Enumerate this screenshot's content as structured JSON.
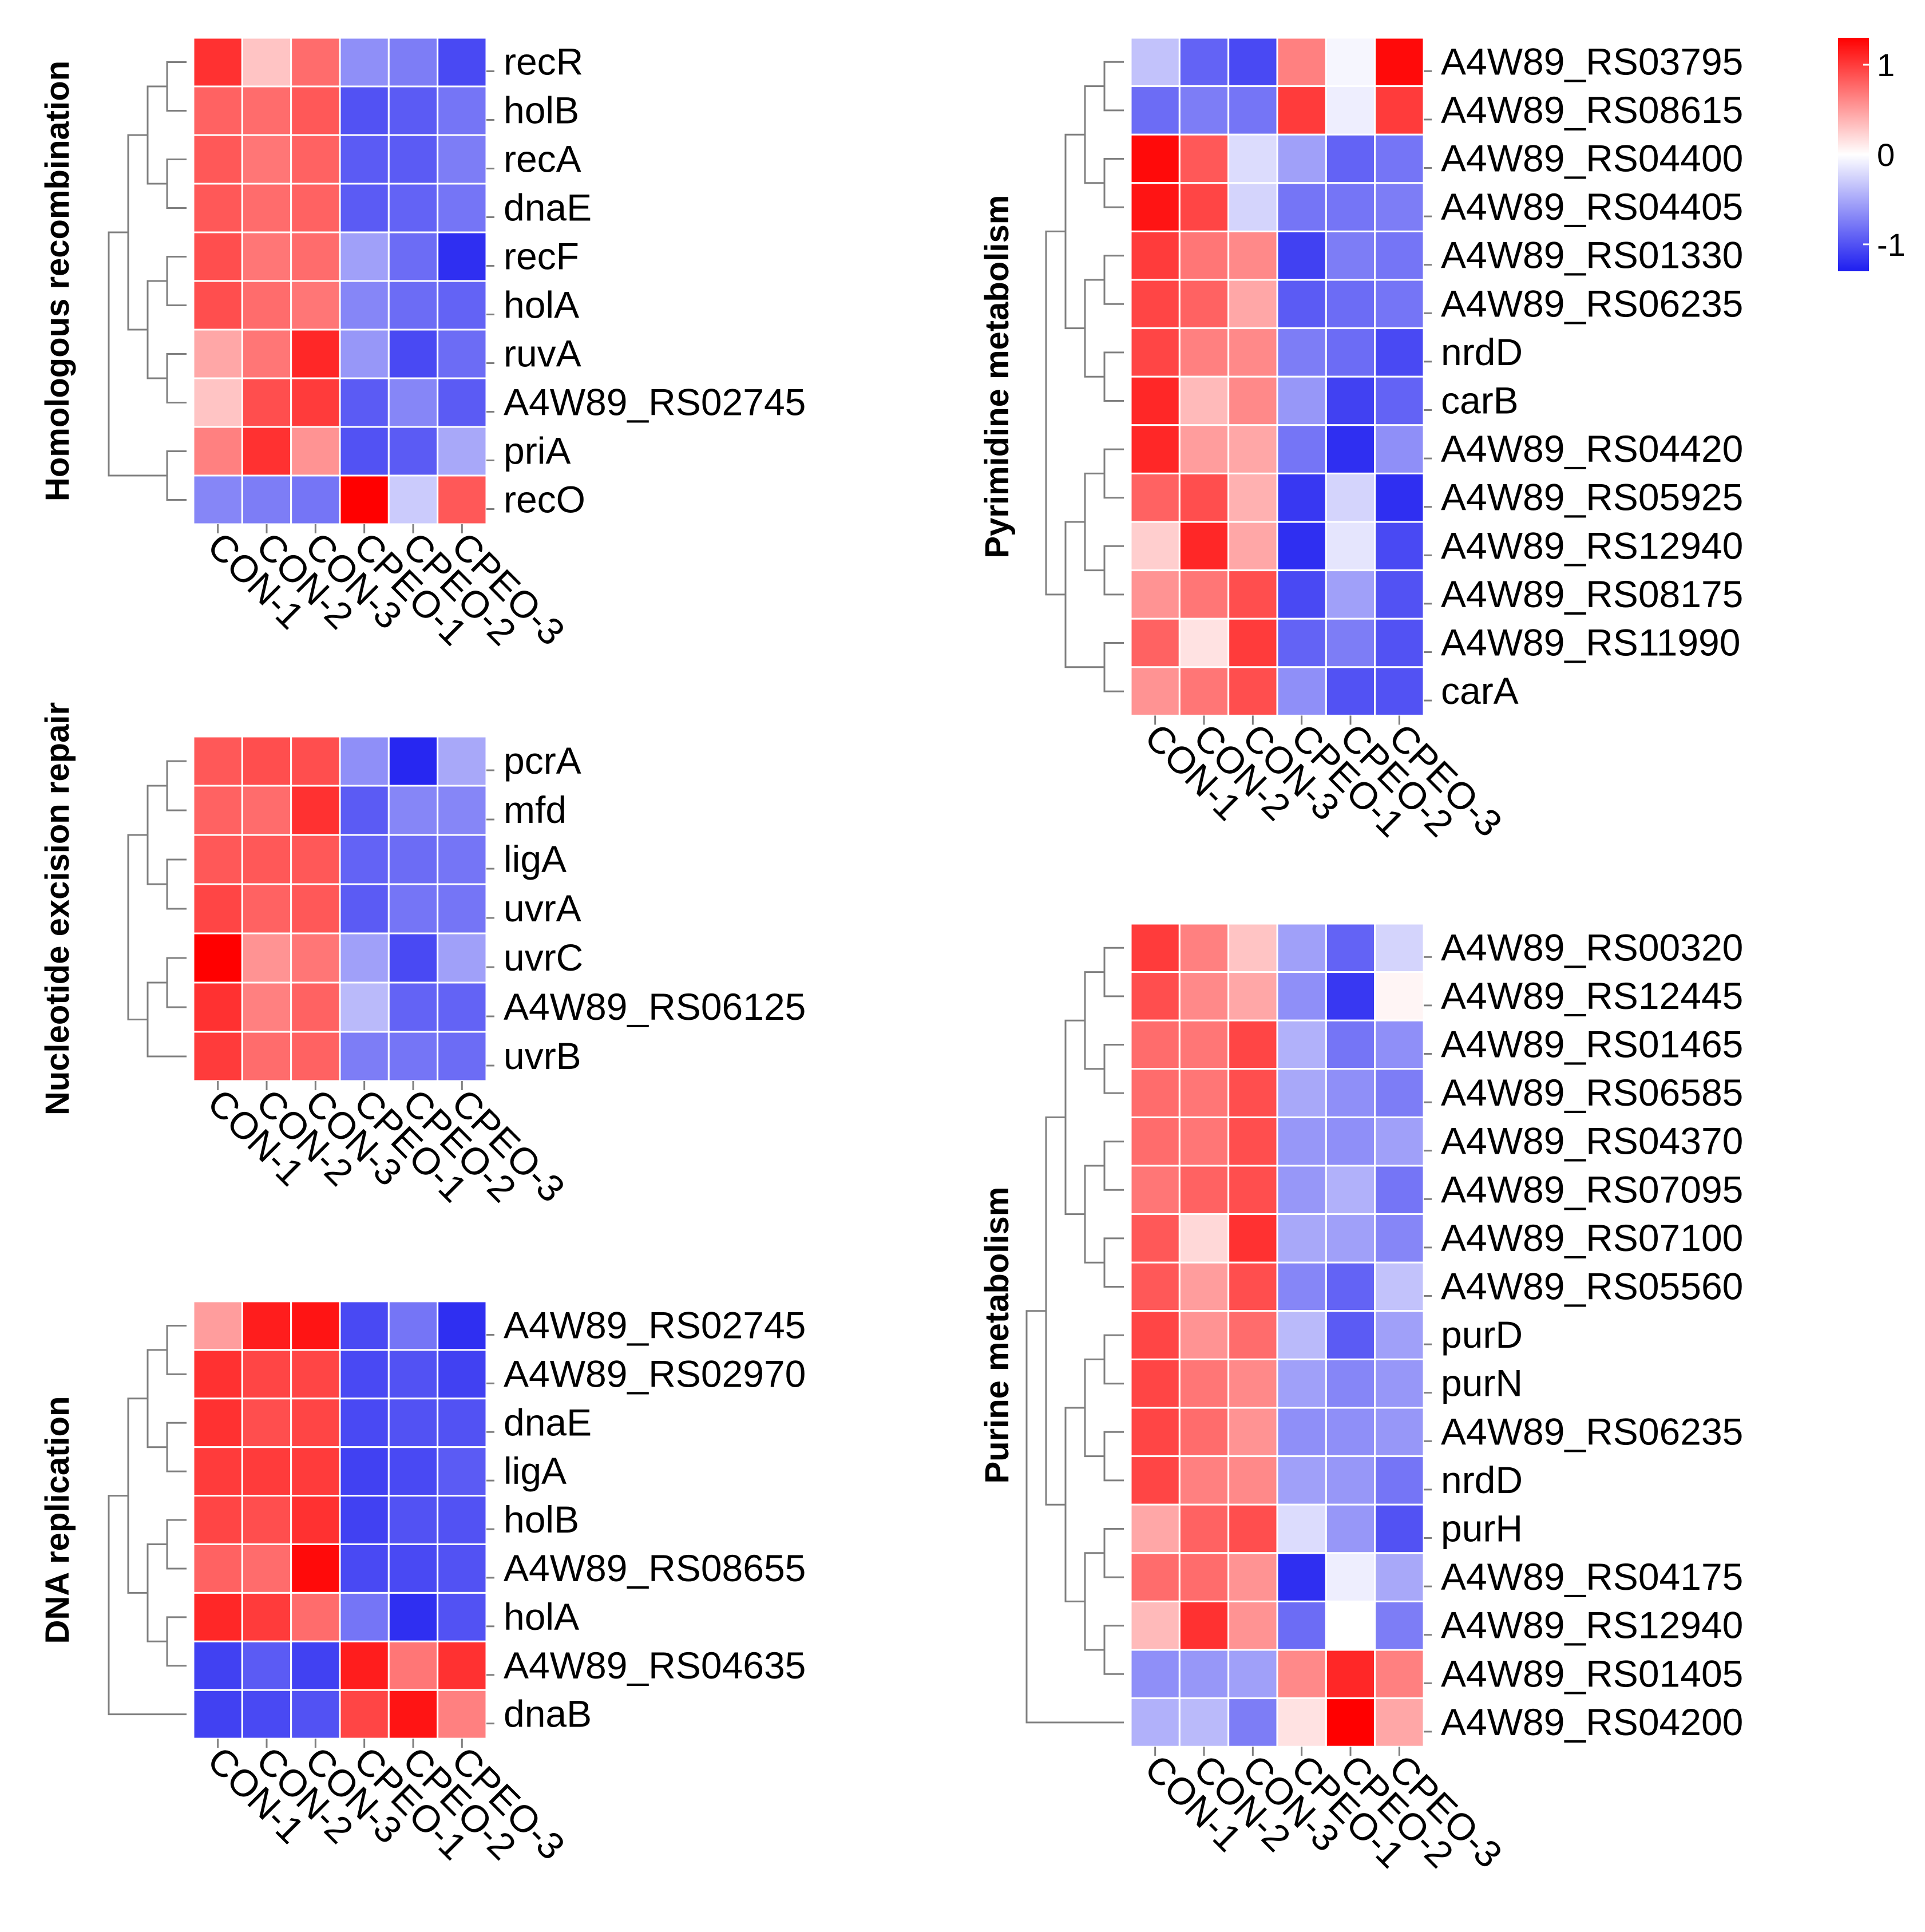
{
  "legend": {
    "ticks": [
      1,
      0,
      -1
    ],
    "tick_labels": [
      "1",
      "0",
      "-1"
    ],
    "range": [
      -1.3,
      1.3
    ],
    "colors": {
      "low": "#1e1ef0",
      "mid": "#ffffff",
      "high": "#ff0000"
    }
  },
  "chart_data": [
    {
      "id": "homologous",
      "type": "heatmap",
      "title": "Homologous recombination",
      "columns": [
        "CON-1",
        "CON-2",
        "CON-3",
        "CPEO-1",
        "CPEO-2",
        "CPEO-3"
      ],
      "rows": [
        "recR",
        "holB",
        "recA",
        "dnaE",
        "recF",
        "holA",
        "ruvA",
        "A4W89_RS02745",
        "priA",
        "recO"
      ],
      "values": [
        [
          1.05,
          0.3,
          0.75,
          -0.65,
          -0.75,
          -1.05
        ],
        [
          0.8,
          0.75,
          0.85,
          -1.0,
          -0.95,
          -0.8
        ],
        [
          0.85,
          0.7,
          0.8,
          -0.95,
          -0.95,
          -0.75
        ],
        [
          0.85,
          0.75,
          0.8,
          -0.95,
          -0.9,
          -0.8
        ],
        [
          0.9,
          0.7,
          0.75,
          -0.55,
          -0.85,
          -1.2
        ],
        [
          0.9,
          0.75,
          0.7,
          -0.7,
          -0.85,
          -0.9
        ],
        [
          0.45,
          0.7,
          1.1,
          -0.6,
          -1.05,
          -0.85
        ],
        [
          0.3,
          0.9,
          1.0,
          -0.95,
          -0.7,
          -0.95
        ],
        [
          0.65,
          1.05,
          0.55,
          -1.0,
          -0.95,
          -0.5
        ],
        [
          -0.7,
          -0.75,
          -0.8,
          1.3,
          -0.3,
          0.85
        ]
      ]
    },
    {
      "id": "ner",
      "type": "heatmap",
      "title": "Nucleotide excision repair",
      "columns": [
        "CON-1",
        "CON-2",
        "CON-3",
        "CPEO-1",
        "CPEO-2",
        "CPEO-3"
      ],
      "rows": [
        "pcrA",
        "mfd",
        "ligA",
        "uvrA",
        "uvrC",
        "A4W89_RS06125",
        "uvrB"
      ],
      "values": [
        [
          0.85,
          0.9,
          0.9,
          -0.65,
          -1.25,
          -0.5
        ],
        [
          0.8,
          0.75,
          1.05,
          -0.95,
          -0.7,
          -0.7
        ],
        [
          0.85,
          0.85,
          0.85,
          -0.9,
          -0.85,
          -0.8
        ],
        [
          0.95,
          0.8,
          0.85,
          -0.95,
          -0.8,
          -0.8
        ],
        [
          1.3,
          0.55,
          0.7,
          -0.55,
          -1.05,
          -0.55
        ],
        [
          1.05,
          0.65,
          0.8,
          -0.4,
          -0.9,
          -0.9
        ],
        [
          1.0,
          0.75,
          0.8,
          -0.75,
          -0.8,
          -0.85
        ]
      ]
    },
    {
      "id": "replication",
      "type": "heatmap",
      "title": "DNA replication",
      "columns": [
        "CON-1",
        "CON-2",
        "CON-3",
        "CPEO-1",
        "CPEO-2",
        "CPEO-3"
      ],
      "rows": [
        "A4W89_RS02745",
        "A4W89_RS02970",
        "dnaE",
        "ligA",
        "holB",
        "A4W89_RS08655",
        "holA",
        "A4W89_RS04635",
        "dnaB"
      ],
      "values": [
        [
          0.5,
          1.15,
          1.2,
          -1.05,
          -0.8,
          -1.2
        ],
        [
          1.05,
          0.95,
          0.95,
          -1.05,
          -1.0,
          -1.1
        ],
        [
          1.05,
          0.9,
          0.95,
          -1.05,
          -1.0,
          -1.0
        ],
        [
          1.0,
          1.0,
          1.0,
          -1.1,
          -1.05,
          -0.95
        ],
        [
          0.95,
          0.9,
          1.05,
          -1.1,
          -1.0,
          -1.0
        ],
        [
          0.8,
          0.75,
          1.25,
          -1.05,
          -1.05,
          -1.0
        ],
        [
          1.1,
          1.0,
          0.75,
          -0.8,
          -1.2,
          -1.0
        ],
        [
          -1.1,
          -0.95,
          -1.1,
          1.15,
          0.7,
          1.05
        ],
        [
          -1.1,
          -1.05,
          -1.0,
          0.95,
          1.2,
          0.65
        ]
      ]
    },
    {
      "id": "pyrimidine",
      "type": "heatmap",
      "title": "Pyrimidine metabolism",
      "columns": [
        "CON-1",
        "CON-2",
        "CON-3",
        "CPEO-1",
        "CPEO-2",
        "CPEO-3"
      ],
      "rows": [
        "A4W89_RS03795",
        "A4W89_RS08615",
        "A4W89_RS04400",
        "A4W89_RS04405",
        "A4W89_RS01330",
        "A4W89_RS06235",
        "nrdD",
        "carB",
        "A4W89_RS04420",
        "A4W89_RS05925",
        "A4W89_RS12940",
        "A4W89_RS08175",
        "A4W89_RS11990",
        "carA"
      ],
      "values": [
        [
          -0.35,
          -0.9,
          -1.05,
          0.65,
          -0.05,
          1.25
        ],
        [
          -0.85,
          -0.75,
          -0.8,
          1.0,
          -0.1,
          1.0
        ],
        [
          1.25,
          0.85,
          -0.2,
          -0.55,
          -0.9,
          -0.8
        ],
        [
          1.2,
          0.95,
          -0.25,
          -0.8,
          -0.8,
          -0.75
        ],
        [
          1.0,
          0.7,
          0.6,
          -1.1,
          -0.75,
          -0.8
        ],
        [
          0.95,
          0.8,
          0.45,
          -0.95,
          -0.85,
          -0.8
        ],
        [
          0.95,
          0.65,
          0.6,
          -0.75,
          -0.85,
          -1.05
        ],
        [
          1.1,
          0.35,
          0.6,
          -0.6,
          -1.1,
          -0.9
        ],
        [
          1.1,
          0.5,
          0.45,
          -0.8,
          -1.2,
          -0.65
        ],
        [
          0.8,
          0.9,
          0.4,
          -1.15,
          -0.25,
          -1.2
        ],
        [
          0.25,
          1.1,
          0.45,
          -1.2,
          -0.15,
          -1.05
        ],
        [
          0.55,
          0.7,
          0.9,
          -1.05,
          -0.55,
          -1.0
        ],
        [
          0.8,
          0.15,
          1.0,
          -0.9,
          -0.75,
          -1.0
        ],
        [
          0.55,
          0.7,
          0.9,
          -0.65,
          -1.0,
          -1.0
        ]
      ]
    },
    {
      "id": "purine",
      "type": "heatmap",
      "title": "Purine metabolism",
      "columns": [
        "CON-1",
        "CON-2",
        "CON-3",
        "CPEO-1",
        "CPEO-2",
        "CPEO-3"
      ],
      "rows": [
        "A4W89_RS00320",
        "A4W89_RS12445",
        "A4W89_RS01465",
        "A4W89_RS06585",
        "A4W89_RS04370",
        "A4W89_RS07095",
        "A4W89_RS07100",
        "A4W89_RS05560",
        "purD",
        "purN",
        "A4W89_RS06235",
        "nrdD",
        "purH",
        "A4W89_RS04175",
        "A4W89_RS12940",
        "A4W89_RS01405",
        "A4W89_RS04200"
      ],
      "values": [
        [
          1.0,
          0.65,
          0.3,
          -0.55,
          -0.9,
          -0.25
        ],
        [
          0.9,
          0.6,
          0.45,
          -0.65,
          -1.15,
          0.05
        ],
        [
          0.75,
          0.7,
          0.95,
          -0.45,
          -0.8,
          -0.65
        ],
        [
          0.75,
          0.7,
          0.9,
          -0.5,
          -0.65,
          -0.75
        ],
        [
          0.75,
          0.7,
          0.9,
          -0.6,
          -0.65,
          -0.55
        ],
        [
          0.7,
          0.8,
          0.9,
          -0.6,
          -0.45,
          -0.8
        ],
        [
          0.85,
          0.2,
          1.05,
          -0.5,
          -0.55,
          -0.7
        ],
        [
          0.85,
          0.5,
          0.9,
          -0.7,
          -0.9,
          -0.35
        ],
        [
          0.95,
          0.55,
          0.75,
          -0.4,
          -0.95,
          -0.55
        ],
        [
          0.95,
          0.7,
          0.6,
          -0.55,
          -0.7,
          -0.6
        ],
        [
          0.95,
          0.75,
          0.55,
          -0.65,
          -0.65,
          -0.6
        ],
        [
          0.95,
          0.65,
          0.6,
          -0.55,
          -0.6,
          -0.8
        ],
        [
          0.45,
          0.8,
          0.9,
          -0.2,
          -0.6,
          -1.0
        ],
        [
          0.75,
          0.75,
          0.55,
          -1.2,
          -0.1,
          -0.5
        ],
        [
          0.35,
          1.05,
          0.55,
          -0.85,
          0.0,
          -0.75
        ],
        [
          -0.65,
          -0.6,
          -0.55,
          0.6,
          1.1,
          0.65
        ],
        [
          -0.45,
          -0.4,
          -0.75,
          0.15,
          1.3,
          0.45
        ]
      ]
    }
  ]
}
